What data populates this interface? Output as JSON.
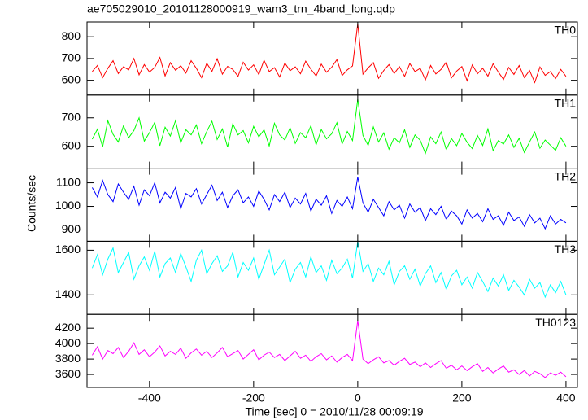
{
  "chart_data": {
    "type": "line",
    "title": "ae705029010_20101128000919_wam3_trn_4band_long.qdp",
    "ylabel": "Counts/sec",
    "xlabel": "Time [sec] 0 = 2010/11/28 00:09:19",
    "xlim": [
      -520,
      422
    ],
    "xticks": [
      -400,
      -200,
      0,
      200,
      400
    ],
    "x": [
      -510,
      -500,
      -490,
      -480,
      -470,
      -460,
      -450,
      -440,
      -430,
      -420,
      -410,
      -400,
      -390,
      -380,
      -370,
      -360,
      -350,
      -340,
      -330,
      -320,
      -310,
      -300,
      -290,
      -280,
      -270,
      -260,
      -250,
      -240,
      -230,
      -220,
      -210,
      -200,
      -190,
      -180,
      -170,
      -160,
      -150,
      -140,
      -130,
      -120,
      -110,
      -100,
      -90,
      -80,
      -70,
      -60,
      -50,
      -40,
      -30,
      -20,
      -10,
      0,
      10,
      20,
      30,
      40,
      50,
      60,
      70,
      80,
      90,
      100,
      110,
      120,
      130,
      140,
      150,
      160,
      170,
      180,
      190,
      200,
      210,
      220,
      230,
      240,
      250,
      260,
      270,
      280,
      290,
      300,
      310,
      320,
      330,
      340,
      350,
      360,
      370,
      380,
      390,
      400
    ],
    "series": [
      {
        "name": "TH0",
        "color": "#ff0000",
        "ylim": [
          532,
          868
        ],
        "yticks": [
          600,
          700,
          800
        ],
        "values": [
          640,
          668,
          612,
          655,
          690,
          631,
          662,
          648,
          700,
          625,
          672,
          638,
          659,
          705,
          620,
          681,
          646,
          667,
          633,
          690,
          655,
          612,
          678,
          641,
          699,
          628,
          664,
          650,
          618,
          683,
          647,
          671,
          626,
          692,
          640,
          658,
          615,
          679,
          644,
          662,
          630,
          688,
          651,
          620,
          674,
          637,
          660,
          695,
          622,
          648,
          666,
          860,
          628,
          657,
          681,
          609,
          645,
          672,
          631,
          663,
          618,
          677,
          640,
          655,
          602,
          668,
          629,
          650,
          684,
          611,
          642,
          663,
          598,
          671,
          630,
          655,
          619,
          676,
          638,
          604,
          659,
          627,
          668,
          612,
          645,
          590,
          661,
          623,
          640,
          608,
          650,
          618
        ]
      },
      {
        "name": "TH1",
        "color": "#00ff00",
        "ylim": [
          523,
          780
        ],
        "yticks": [
          600,
          700
        ],
        "values": [
          625,
          660,
          598,
          690,
          642,
          615,
          672,
          630,
          655,
          700,
          618,
          648,
          684,
          602,
          667,
          636,
          690,
          612,
          658,
          640,
          675,
          609,
          652,
          688,
          624,
          661,
          597,
          679,
          640,
          655,
          612,
          670,
          633,
          658,
          601,
          681,
          640,
          622,
          665,
          610,
          648,
          630,
          672,
          605,
          659,
          626,
          644,
          683,
          608,
          652,
          620,
          765,
          638,
          603,
          668,
          615,
          647,
          590,
          630,
          612,
          658,
          596,
          640,
          621,
          575,
          633,
          609,
          650,
          588,
          627,
          602,
          645,
          614,
          592,
          638,
          603,
          661,
          585,
          620,
          608,
          640,
          596,
          628,
          578,
          615,
          650,
          593,
          622,
          604,
          586,
          630,
          600
        ]
      },
      {
        "name": "TH2",
        "color": "#0000ff",
        "ylim": [
          852,
          1162
        ],
        "yticks": [
          900,
          1000,
          1100
        ],
        "values": [
          1080,
          1040,
          1110,
          1050,
          1020,
          1095,
          1060,
          1030,
          1085,
          1005,
          1070,
          1045,
          1100,
          1015,
          1060,
          1035,
          1080,
          990,
          1055,
          1040,
          1075,
          1010,
          1050,
          1090,
          1025,
          1060,
          995,
          1045,
          1070,
          1015,
          1040,
          1000,
          1065,
          1030,
          985,
          1050,
          1020,
          1060,
          995,
          1035,
          1010,
          1055,
          980,
          1030,
          1005,
          1045,
          970,
          1025,
          1000,
          1040,
          990,
          1125,
          1015,
          975,
          1030,
          995,
          960,
          1020,
          985,
          1005,
          950,
          1010,
          975,
          995,
          940,
          990,
          965,
          1000,
          945,
          980,
          960,
          925,
          985,
          950,
          970,
          935,
          990,
          945,
          960,
          920,
          975,
          940,
          955,
          915,
          965,
          930,
          950,
          905,
          960,
          925,
          945,
          930
        ]
      },
      {
        "name": "TH3",
        "color": "#00ffff",
        "ylim": [
          1313,
          1640
        ],
        "yticks": [
          1400,
          1600
        ],
        "values": [
          1520,
          1580,
          1490,
          1560,
          1610,
          1500,
          1545,
          1590,
          1470,
          1530,
          1570,
          1510,
          1595,
          1480,
          1540,
          1565,
          1500,
          1585,
          1525,
          1460,
          1555,
          1600,
          1495,
          1540,
          1575,
          1505,
          1530,
          1590,
          1480,
          1545,
          1510,
          1565,
          1470,
          1535,
          1600,
          1490,
          1525,
          1560,
          1455,
          1515,
          1545,
          1480,
          1570,
          1500,
          1530,
          1465,
          1555,
          1495,
          1520,
          1560,
          1475,
          1640,
          1505,
          1540,
          1460,
          1520,
          1490,
          1550,
          1445,
          1505,
          1530,
          1470,
          1515,
          1440,
          1495,
          1530,
          1455,
          1500,
          1425,
          1485,
          1510,
          1445,
          1480,
          1430,
          1500,
          1460,
          1415,
          1475,
          1440,
          1490,
          1420,
          1465,
          1435,
          1400,
          1470,
          1430,
          1455,
          1390,
          1445,
          1410,
          1460,
          1400
        ]
      },
      {
        "name": "TH0123",
        "color": "#ff00ff",
        "ylim": [
          3432,
          4379
        ],
        "yticks": [
          3600,
          3800,
          4000,
          4200
        ],
        "values": [
          3850,
          3960,
          3800,
          3910,
          3870,
          3950,
          3820,
          3900,
          4010,
          3860,
          3920,
          3830,
          3890,
          3970,
          3840,
          3900,
          3860,
          3940,
          3810,
          3880,
          3930,
          3850,
          3900,
          3820,
          3880,
          3950,
          3830,
          3870,
          3910,
          3800,
          3860,
          3920,
          3790,
          3850,
          3890,
          3820,
          3860,
          3780,
          3840,
          3900,
          3810,
          3850,
          3770,
          3830,
          3870,
          3790,
          3840,
          3760,
          3820,
          3860,
          3780,
          4300,
          3800,
          3740,
          3790,
          3830,
          3750,
          3780,
          3720,
          3770,
          3810,
          3730,
          3760,
          3700,
          3750,
          3690,
          3740,
          3780,
          3680,
          3720,
          3660,
          3710,
          3650,
          3700,
          3740,
          3640,
          3690,
          3620,
          3670,
          3710,
          3630,
          3660,
          3600,
          3650,
          3580,
          3640,
          3610,
          3560,
          3620,
          3590,
          3630,
          3570
        ]
      }
    ]
  }
}
